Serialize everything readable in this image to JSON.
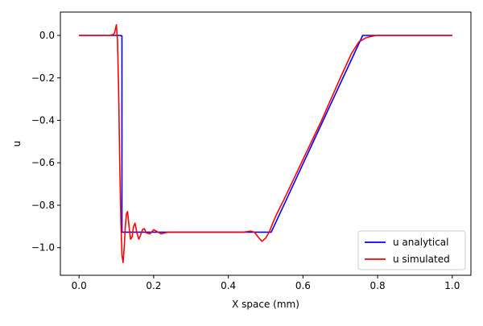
{
  "chart_data": {
    "type": "line",
    "title": "",
    "xlabel": "X space (mm)",
    "ylabel": "u",
    "xlim": [
      -0.05,
      1.05
    ],
    "ylim": [
      -1.13,
      0.11
    ],
    "x_ticks": [
      0.0,
      0.2,
      0.4,
      0.6,
      0.8,
      1.0
    ],
    "x_tick_labels": [
      "0.0",
      "0.2",
      "0.4",
      "0.6",
      "0.8",
      "1.0"
    ],
    "y_ticks": [
      0.0,
      -0.2,
      -0.4,
      -0.6,
      -0.8,
      -1.0
    ],
    "y_tick_labels": [
      "0.0",
      "−0.2",
      "−0.4",
      "−0.6",
      "−0.8",
      "−1.0"
    ],
    "grid": false,
    "legend_position": "lower-right",
    "series": [
      {
        "name": "u analytical",
        "color": "#0000ff",
        "x": [
          0.0,
          0.112,
          0.112,
          0.115,
          0.115,
          0.515,
          0.76,
          0.765,
          1.0
        ],
        "y": [
          0.0,
          0.0,
          -0.002,
          -0.002,
          -0.927,
          -0.927,
          0.0,
          0.0,
          0.0
        ]
      },
      {
        "name": "u simulated",
        "color": "#ff0000",
        "x": [
          0.0,
          0.08,
          0.09,
          0.095,
          0.1,
          0.103,
          0.106,
          0.109,
          0.112,
          0.115,
          0.118,
          0.121,
          0.124,
          0.127,
          0.13,
          0.134,
          0.138,
          0.142,
          0.146,
          0.15,
          0.155,
          0.16,
          0.165,
          0.17,
          0.175,
          0.18,
          0.19,
          0.2,
          0.21,
          0.22,
          0.23,
          0.24,
          0.25,
          0.3,
          0.35,
          0.4,
          0.44,
          0.46,
          0.47,
          0.48,
          0.49,
          0.5,
          0.51,
          0.52,
          0.53,
          0.55,
          0.6,
          0.65,
          0.7,
          0.73,
          0.75,
          0.77,
          0.79,
          0.8,
          0.82,
          0.85,
          0.9,
          1.0
        ],
        "y": [
          0.0,
          0.0,
          0.003,
          0.01,
          0.05,
          -0.02,
          -0.25,
          -0.6,
          -0.87,
          -1.035,
          -1.07,
          -1.0,
          -0.9,
          -0.84,
          -0.83,
          -0.9,
          -0.96,
          -0.95,
          -0.9,
          -0.885,
          -0.93,
          -0.96,
          -0.94,
          -0.915,
          -0.91,
          -0.93,
          -0.935,
          -0.915,
          -0.925,
          -0.935,
          -0.93,
          -0.927,
          -0.927,
          -0.927,
          -0.927,
          -0.927,
          -0.927,
          -0.922,
          -0.927,
          -0.95,
          -0.97,
          -0.955,
          -0.925,
          -0.88,
          -0.84,
          -0.77,
          -0.585,
          -0.4,
          -0.2,
          -0.085,
          -0.03,
          -0.01,
          -0.002,
          0.0,
          0.0,
          0.0,
          0.0,
          0.0
        ]
      }
    ]
  }
}
